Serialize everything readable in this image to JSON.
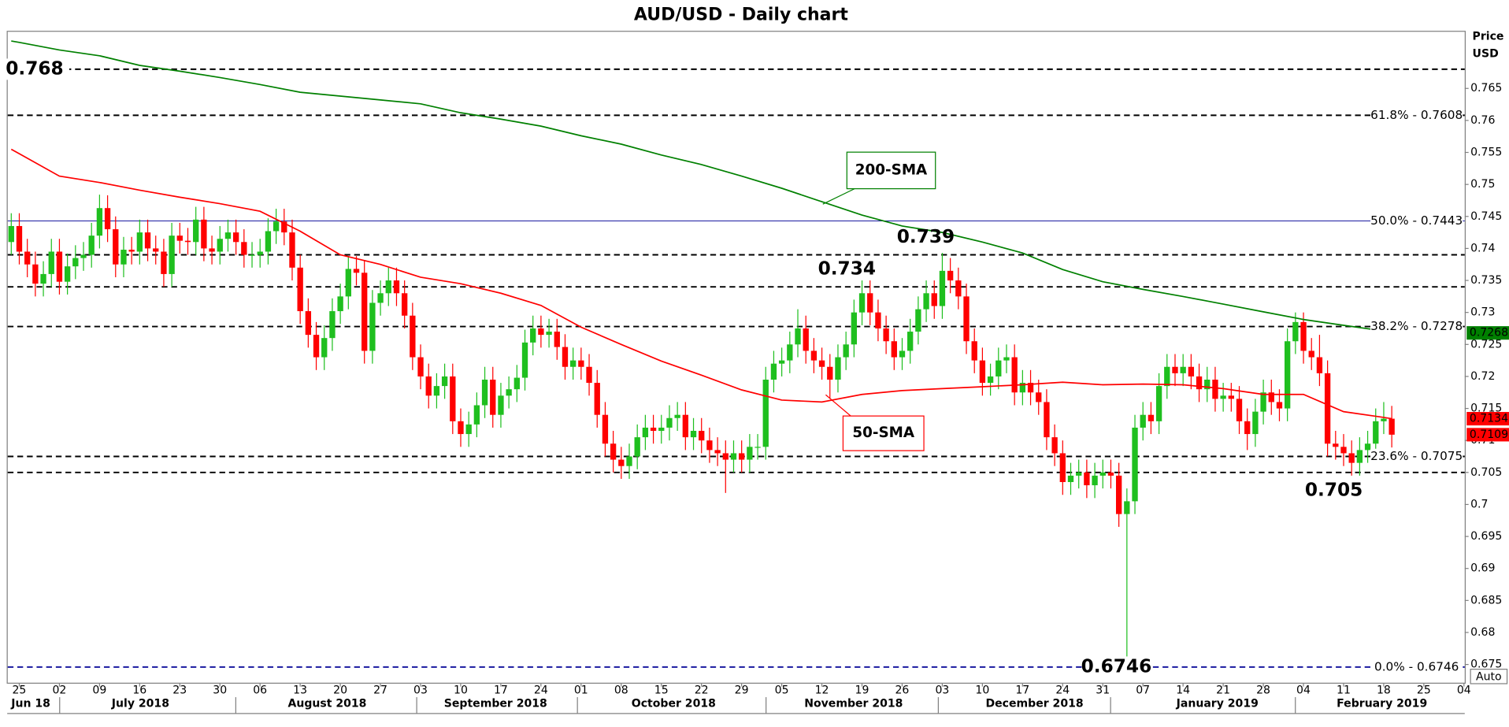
{
  "chart_data": {
    "type": "candlestick",
    "title": "AUD/USD - Daily chart",
    "y_label": [
      "Price",
      "USD"
    ],
    "up_color": "#1fbf1f",
    "down_color": "#ff0000",
    "ylim": [
      0.672,
      0.774
    ],
    "yticks": [
      0.675,
      0.68,
      0.685,
      0.69,
      0.695,
      0.7,
      0.705,
      0.71,
      0.715,
      0.72,
      0.725,
      0.73,
      0.735,
      0.74,
      0.745,
      0.75,
      0.755,
      0.76,
      0.765
    ],
    "x_day_labels": [
      "25",
      "02",
      "09",
      "16",
      "23",
      "30",
      "06",
      "13",
      "20",
      "27",
      "03",
      "10",
      "17",
      "24",
      "01",
      "08",
      "15",
      "22",
      "29",
      "05",
      "12",
      "19",
      "26",
      "03",
      "10",
      "17",
      "24",
      "31",
      "07",
      "14",
      "21",
      "28",
      "04",
      "11",
      "18",
      "25",
      "04"
    ],
    "x_month_labels": [
      "Jun 18",
      "July 2018",
      "August 2018",
      "September 2018",
      "October 2018",
      "November 2018",
      "December 2018",
      "January 2019",
      "February 2019"
    ],
    "dates": [
      "2018-06-22",
      "2018-06-25",
      "2018-06-26",
      "2018-06-27",
      "2018-06-28",
      "2018-06-29",
      "2018-07-02",
      "2018-07-03",
      "2018-07-04",
      "2018-07-05",
      "2018-07-06",
      "2018-07-09",
      "2018-07-10",
      "2018-07-11",
      "2018-07-12",
      "2018-07-13",
      "2018-07-16",
      "2018-07-17",
      "2018-07-18",
      "2018-07-19",
      "2018-07-20",
      "2018-07-23",
      "2018-07-24",
      "2018-07-25",
      "2018-07-26",
      "2018-07-27",
      "2018-07-30",
      "2018-07-31",
      "2018-08-01",
      "2018-08-02",
      "2018-08-03",
      "2018-08-06",
      "2018-08-07",
      "2018-08-08",
      "2018-08-09",
      "2018-08-10",
      "2018-08-13",
      "2018-08-14",
      "2018-08-15",
      "2018-08-16",
      "2018-08-17",
      "2018-08-20",
      "2018-08-21",
      "2018-08-22",
      "2018-08-23",
      "2018-08-24",
      "2018-08-27",
      "2018-08-28",
      "2018-08-29",
      "2018-08-30",
      "2018-08-31",
      "2018-09-03",
      "2018-09-04",
      "2018-09-05",
      "2018-09-06",
      "2018-09-07",
      "2018-09-10",
      "2018-09-11",
      "2018-09-12",
      "2018-09-13",
      "2018-09-14",
      "2018-09-17",
      "2018-09-18",
      "2018-09-19",
      "2018-09-20",
      "2018-09-21",
      "2018-09-24",
      "2018-09-25",
      "2018-09-26",
      "2018-09-27",
      "2018-09-28",
      "2018-10-01",
      "2018-10-02",
      "2018-10-03",
      "2018-10-04",
      "2018-10-05",
      "2018-10-08",
      "2018-10-09",
      "2018-10-10",
      "2018-10-11",
      "2018-10-12",
      "2018-10-15",
      "2018-10-16",
      "2018-10-17",
      "2018-10-18",
      "2018-10-19",
      "2018-10-22",
      "2018-10-23",
      "2018-10-24",
      "2018-10-25",
      "2018-10-26",
      "2018-10-29",
      "2018-10-30",
      "2018-10-31",
      "2018-11-01",
      "2018-11-02",
      "2018-11-05",
      "2018-11-06",
      "2018-11-07",
      "2018-11-08",
      "2018-11-09",
      "2018-11-12",
      "2018-11-13",
      "2018-11-14",
      "2018-11-15",
      "2018-11-16",
      "2018-11-19",
      "2018-11-20",
      "2018-11-21",
      "2018-11-22",
      "2018-11-23",
      "2018-11-26",
      "2018-11-27",
      "2018-11-28",
      "2018-11-29",
      "2018-11-30",
      "2018-12-03",
      "2018-12-04",
      "2018-12-05",
      "2018-12-06",
      "2018-12-07",
      "2018-12-10",
      "2018-12-11",
      "2018-12-12",
      "2018-12-13",
      "2018-12-14",
      "2018-12-17",
      "2018-12-18",
      "2018-12-19",
      "2018-12-20",
      "2018-12-21",
      "2018-12-24",
      "2018-12-25",
      "2018-12-26",
      "2018-12-27",
      "2018-12-28",
      "2018-12-31",
      "2019-01-01",
      "2019-01-02",
      "2019-01-03",
      "2019-01-04",
      "2019-01-07",
      "2019-01-08",
      "2019-01-09",
      "2019-01-10",
      "2019-01-11",
      "2019-01-14",
      "2019-01-15",
      "2019-01-16",
      "2019-01-17",
      "2019-01-18",
      "2019-01-21",
      "2019-01-22",
      "2019-01-23",
      "2019-01-24",
      "2019-01-25",
      "2019-01-28",
      "2019-01-29",
      "2019-01-30",
      "2019-01-31",
      "2019-02-01",
      "2019-02-04",
      "2019-02-05",
      "2019-02-06",
      "2019-02-07",
      "2019-02-08",
      "2019-02-11",
      "2019-02-12",
      "2019-02-13",
      "2019-02-14",
      "2019-02-15",
      "2019-02-18",
      "2019-02-19"
    ],
    "open": [
      0.741,
      0.7435,
      0.7395,
      0.7375,
      0.7345,
      0.736,
      0.7395,
      0.7348,
      0.7372,
      0.7385,
      0.739,
      0.742,
      0.7463,
      0.743,
      0.7375,
      0.7398,
      0.7395,
      0.7425,
      0.74,
      0.7395,
      0.736,
      0.742,
      0.7412,
      0.741,
      0.7445,
      0.74,
      0.7395,
      0.7415,
      0.7425,
      0.741,
      0.739,
      0.739,
      0.7395,
      0.7427,
      0.7442,
      0.7425,
      0.737,
      0.7302,
      0.7265,
      0.723,
      0.726,
      0.7302,
      0.7325,
      0.7368,
      0.7362,
      0.724,
      0.7315,
      0.733,
      0.735,
      0.733,
      0.7295,
      0.723,
      0.72,
      0.717,
      0.7185,
      0.72,
      0.713,
      0.711,
      0.7125,
      0.7155,
      0.7195,
      0.714,
      0.717,
      0.718,
      0.7198,
      0.7253,
      0.7275,
      0.7265,
      0.727,
      0.7246,
      0.7215,
      0.7225,
      0.7215,
      0.719,
      0.714,
      0.7095,
      0.707,
      0.706,
      0.7075,
      0.7105,
      0.712,
      0.7115,
      0.712,
      0.7135,
      0.714,
      0.7105,
      0.7115,
      0.71,
      0.7085,
      0.708,
      0.707,
      0.708,
      0.707,
      0.709,
      0.709,
      0.7195,
      0.722,
      0.7225,
      0.725,
      0.7275,
      0.724,
      0.7225,
      0.7215,
      0.7195,
      0.723,
      0.725,
      0.73,
      0.733,
      0.73,
      0.7275,
      0.7255,
      0.723,
      0.724,
      0.727,
      0.7305,
      0.733,
      0.731,
      0.7365,
      0.735,
      0.7325,
      0.7255,
      0.7225,
      0.719,
      0.72,
      0.7225,
      0.723,
      0.7175,
      0.719,
      0.7175,
      0.716,
      0.7105,
      0.708,
      0.7035,
      0.7045,
      0.705,
      0.703,
      0.7045,
      0.705,
      0.7045,
      0.6985,
      0.7005,
      0.712,
      0.714,
      0.713,
      0.7185,
      0.7215,
      0.7205,
      0.7215,
      0.72,
      0.718,
      0.7195,
      0.7165,
      0.717,
      0.7165,
      0.713,
      0.711,
      0.7145,
      0.7175,
      0.716,
      0.715,
      0.7255,
      0.7285,
      0.724,
      0.723,
      0.7205,
      0.7095,
      0.709,
      0.708,
      0.7065,
      0.7085,
      0.7095,
      0.713,
      0.7134
    ],
    "high": [
      0.7455,
      0.7455,
      0.7415,
      0.7395,
      0.738,
      0.7415,
      0.7415,
      0.7392,
      0.7405,
      0.741,
      0.744,
      0.7484,
      0.7483,
      0.745,
      0.7418,
      0.7418,
      0.7445,
      0.7445,
      0.742,
      0.7415,
      0.744,
      0.744,
      0.7432,
      0.7465,
      0.7465,
      0.742,
      0.7435,
      0.7445,
      0.7445,
      0.743,
      0.741,
      0.7415,
      0.7447,
      0.7462,
      0.7462,
      0.7445,
      0.739,
      0.7322,
      0.7285,
      0.728,
      0.7322,
      0.7345,
      0.7388,
      0.7388,
      0.7382,
      0.7335,
      0.735,
      0.737,
      0.737,
      0.735,
      0.7315,
      0.725,
      0.722,
      0.7205,
      0.722,
      0.722,
      0.715,
      0.7145,
      0.7175,
      0.7215,
      0.7215,
      0.719,
      0.72,
      0.7218,
      0.7273,
      0.7295,
      0.7295,
      0.729,
      0.729,
      0.7266,
      0.7245,
      0.7245,
      0.7235,
      0.721,
      0.716,
      0.7115,
      0.709,
      0.7095,
      0.7125,
      0.714,
      0.714,
      0.714,
      0.7155,
      0.716,
      0.716,
      0.7135,
      0.7135,
      0.712,
      0.7105,
      0.71,
      0.71,
      0.71,
      0.711,
      0.711,
      0.7215,
      0.724,
      0.7245,
      0.727,
      0.7305,
      0.7295,
      0.726,
      0.7245,
      0.7235,
      0.725,
      0.727,
      0.732,
      0.735,
      0.735,
      0.732,
      0.7295,
      0.7275,
      0.726,
      0.729,
      0.7325,
      0.735,
      0.735,
      0.7393,
      0.7385,
      0.737,
      0.7345,
      0.7275,
      0.7245,
      0.722,
      0.7245,
      0.725,
      0.725,
      0.721,
      0.721,
      0.7195,
      0.718,
      0.7125,
      0.71,
      0.7065,
      0.707,
      0.707,
      0.7065,
      0.707,
      0.707,
      0.7065,
      0.7025,
      0.714,
      0.716,
      0.716,
      0.7205,
      0.7235,
      0.7235,
      0.7235,
      0.7235,
      0.722,
      0.7215,
      0.7215,
      0.719,
      0.719,
      0.7185,
      0.715,
      0.7165,
      0.7195,
      0.7195,
      0.718,
      0.7275,
      0.73,
      0.73,
      0.726,
      0.7265,
      0.7225,
      0.7115,
      0.711,
      0.71,
      0.7105,
      0.7115,
      0.715,
      0.716,
      0.7154
    ],
    "low": [
      0.739,
      0.7375,
      0.7355,
      0.7325,
      0.7325,
      0.734,
      0.7328,
      0.7328,
      0.7352,
      0.7365,
      0.737,
      0.74,
      0.741,
      0.7355,
      0.7355,
      0.7375,
      0.7375,
      0.738,
      0.7375,
      0.734,
      0.734,
      0.7392,
      0.739,
      0.739,
      0.738,
      0.7375,
      0.7375,
      0.7395,
      0.739,
      0.737,
      0.737,
      0.737,
      0.7375,
      0.7407,
      0.7405,
      0.735,
      0.7282,
      0.7245,
      0.721,
      0.721,
      0.724,
      0.7282,
      0.7305,
      0.7342,
      0.722,
      0.722,
      0.7295,
      0.731,
      0.731,
      0.7275,
      0.721,
      0.718,
      0.715,
      0.715,
      0.7165,
      0.711,
      0.709,
      0.709,
      0.7105,
      0.7135,
      0.712,
      0.712,
      0.715,
      0.716,
      0.7178,
      0.7233,
      0.7245,
      0.7245,
      0.7226,
      0.7195,
      0.7195,
      0.7195,
      0.717,
      0.712,
      0.7075,
      0.705,
      0.704,
      0.704,
      0.7055,
      0.7085,
      0.7095,
      0.7095,
      0.71,
      0.7115,
      0.7085,
      0.7085,
      0.708,
      0.7065,
      0.706,
      0.7018,
      0.705,
      0.705,
      0.705,
      0.707,
      0.707,
      0.7175,
      0.72,
      0.7205,
      0.723,
      0.722,
      0.7205,
      0.7195,
      0.7165,
      0.7175,
      0.721,
      0.723,
      0.728,
      0.728,
      0.7255,
      0.7235,
      0.721,
      0.721,
      0.722,
      0.725,
      0.7285,
      0.729,
      0.729,
      0.733,
      0.7305,
      0.7235,
      0.7205,
      0.717,
      0.717,
      0.718,
      0.7205,
      0.7155,
      0.7155,
      0.7155,
      0.714,
      0.7085,
      0.706,
      0.7015,
      0.7015,
      0.7025,
      0.701,
      0.701,
      0.7025,
      0.7025,
      0.6965,
      0.6746,
      0.6985,
      0.71,
      0.711,
      0.711,
      0.7165,
      0.7185,
      0.7185,
      0.718,
      0.716,
      0.716,
      0.7145,
      0.7145,
      0.7145,
      0.711,
      0.7085,
      0.709,
      0.7125,
      0.714,
      0.713,
      0.713,
      0.7235,
      0.722,
      0.721,
      0.7185,
      0.7075,
      0.707,
      0.706,
      0.7045,
      0.7045,
      0.7065,
      0.7075,
      0.711,
      0.7089
    ],
    "close": [
      0.7435,
      0.7395,
      0.7375,
      0.7345,
      0.736,
      0.7395,
      0.7348,
      0.7372,
      0.7385,
      0.739,
      0.742,
      0.7463,
      0.743,
      0.7375,
      0.7398,
      0.7395,
      0.7425,
      0.74,
      0.7395,
      0.736,
      0.742,
      0.7412,
      0.741,
      0.7445,
      0.74,
      0.7395,
      0.7415,
      0.7425,
      0.741,
      0.739,
      0.739,
      0.7395,
      0.7427,
      0.7442,
      0.7425,
      0.737,
      0.7302,
      0.7265,
      0.723,
      0.726,
      0.7302,
      0.7325,
      0.7368,
      0.7362,
      0.724,
      0.7315,
      0.733,
      0.735,
      0.733,
      0.7295,
      0.723,
      0.72,
      0.717,
      0.7185,
      0.72,
      0.713,
      0.711,
      0.7125,
      0.7155,
      0.7195,
      0.714,
      0.717,
      0.718,
      0.7198,
      0.7253,
      0.7275,
      0.7265,
      0.727,
      0.7246,
      0.7215,
      0.7225,
      0.7215,
      0.719,
      0.714,
      0.7095,
      0.707,
      0.706,
      0.7075,
      0.7105,
      0.712,
      0.7115,
      0.712,
      0.7135,
      0.714,
      0.7105,
      0.7115,
      0.71,
      0.7085,
      0.708,
      0.707,
      0.708,
      0.707,
      0.709,
      0.709,
      0.7195,
      0.722,
      0.7225,
      0.725,
      0.7275,
      0.724,
      0.7225,
      0.7215,
      0.7195,
      0.723,
      0.725,
      0.73,
      0.733,
      0.73,
      0.7275,
      0.7255,
      0.723,
      0.724,
      0.727,
      0.7305,
      0.733,
      0.731,
      0.7365,
      0.735,
      0.7325,
      0.7255,
      0.7225,
      0.719,
      0.72,
      0.7225,
      0.723,
      0.7175,
      0.719,
      0.7175,
      0.716,
      0.7105,
      0.708,
      0.7035,
      0.7045,
      0.705,
      0.703,
      0.7045,
      0.705,
      0.7045,
      0.6985,
      0.7005,
      0.712,
      0.714,
      0.713,
      0.7185,
      0.7215,
      0.7205,
      0.7215,
      0.72,
      0.718,
      0.7195,
      0.7165,
      0.717,
      0.7165,
      0.713,
      0.711,
      0.7145,
      0.7175,
      0.716,
      0.715,
      0.7255,
      0.7285,
      0.724,
      0.723,
      0.7205,
      0.7095,
      0.709,
      0.708,
      0.7065,
      0.7085,
      0.7095,
      0.713,
      0.7134,
      0.7109
    ],
    "series": [
      {
        "name": "200-SMA",
        "color": "#008000",
        "x": [
          "2018-06-22",
          "2018-06-25",
          "2018-07-02",
          "2018-07-09",
          "2018-07-16",
          "2018-07-23",
          "2018-07-30",
          "2018-08-06",
          "2018-08-13",
          "2018-08-20",
          "2018-08-27",
          "2018-09-03",
          "2018-09-10",
          "2018-09-17",
          "2018-09-24",
          "2018-10-01",
          "2018-10-08",
          "2018-10-15",
          "2018-10-22",
          "2018-10-29",
          "2018-11-05",
          "2018-11-12",
          "2018-11-19",
          "2018-11-26",
          "2018-12-03",
          "2018-12-10",
          "2018-12-17",
          "2018-12-24",
          "2018-12-31",
          "2019-01-07",
          "2019-01-14",
          "2019-01-21",
          "2019-01-28",
          "2019-02-04",
          "2019-02-11",
          "2019-02-18",
          "2019-02-19"
        ],
        "values": [
          0.7724,
          0.7722,
          0.771,
          0.7701,
          0.7686,
          0.7677,
          0.7667,
          0.7656,
          0.7644,
          0.7638,
          0.7632,
          0.7626,
          0.7612,
          0.7602,
          0.7591,
          0.7576,
          0.7563,
          0.7546,
          0.7531,
          0.7513,
          0.7494,
          0.7473,
          0.7452,
          0.7435,
          0.7425,
          0.741,
          0.7393,
          0.7367,
          0.7348,
          0.7336,
          0.7325,
          0.7313,
          0.7301,
          0.7289,
          0.728,
          0.7271,
          0.7268
        ]
      },
      {
        "name": "50-SMA",
        "color": "#ff0000",
        "x": [
          "2018-06-22",
          "2018-06-25",
          "2018-07-02",
          "2018-07-09",
          "2018-07-16",
          "2018-07-23",
          "2018-07-30",
          "2018-08-06",
          "2018-08-13",
          "2018-08-20",
          "2018-08-27",
          "2018-09-03",
          "2018-09-10",
          "2018-09-17",
          "2018-09-24",
          "2018-10-01",
          "2018-10-08",
          "2018-10-15",
          "2018-10-22",
          "2018-10-29",
          "2018-11-05",
          "2018-11-12",
          "2018-11-19",
          "2018-11-26",
          "2018-12-03",
          "2018-12-10",
          "2018-12-17",
          "2018-12-24",
          "2018-12-31",
          "2019-01-07",
          "2019-01-14",
          "2019-01-21",
          "2019-01-28",
          "2019-02-04",
          "2019-02-11",
          "2019-02-18",
          "2019-02-19"
        ],
        "values": [
          0.7555,
          0.7548,
          0.7513,
          0.7503,
          0.7491,
          0.748,
          0.747,
          0.7458,
          0.7427,
          0.739,
          0.7375,
          0.7355,
          0.7345,
          0.733,
          0.7311,
          0.7277,
          0.725,
          0.7224,
          0.7202,
          0.7179,
          0.7163,
          0.716,
          0.7172,
          0.7178,
          0.7181,
          0.7184,
          0.7187,
          0.7191,
          0.7187,
          0.7188,
          0.7187,
          0.7181,
          0.7172,
          0.7172,
          0.7145,
          0.7136,
          0.7134
        ]
      }
    ],
    "levels": [
      {
        "value": 0.768,
        "color": "#000000",
        "dashed": true
      },
      {
        "value": 0.7608,
        "label": "61.8% - 0.7608",
        "color": "#000000",
        "dashed": true
      },
      {
        "value": 0.7443,
        "label": "50.0% - 0.7443",
        "color": "#1a1aa0",
        "dashed": false
      },
      {
        "value": 0.739,
        "color": "#000000",
        "dashed": true
      },
      {
        "value": 0.734,
        "color": "#000000",
        "dashed": true
      },
      {
        "value": 0.7278,
        "label": "38.2% - 0.7278",
        "color": "#000000",
        "dashed": true
      },
      {
        "value": 0.7075,
        "label": "23.6% - 0.7075",
        "color": "#000000",
        "dashed": true
      },
      {
        "value": 0.705,
        "color": "#000000",
        "dashed": true
      },
      {
        "value": 0.6746,
        "label": "0.0% - 0.6746",
        "color": "#1a1aa0",
        "dashed": true
      }
    ],
    "scale_mode": "Auto"
  }
}
